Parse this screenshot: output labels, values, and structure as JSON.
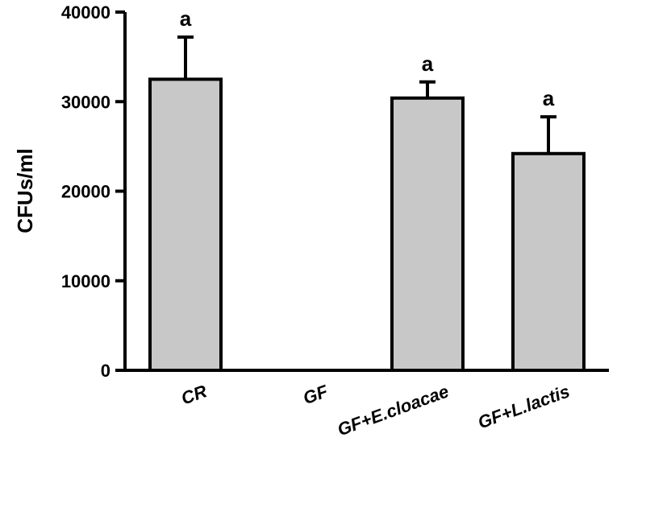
{
  "chart_data": {
    "type": "bar",
    "title": "",
    "xlabel": "",
    "ylabel": "CFUs/ml",
    "ylim": [
      0,
      40000
    ],
    "yticks": [
      0,
      10000,
      20000,
      30000,
      40000
    ],
    "ytick_labels": [
      "0",
      "10000",
      "20000",
      "30000",
      "40000"
    ],
    "grid": false,
    "categories": [
      "CR",
      "GF",
      "GF+E.cloacae",
      "GF+L.lactis"
    ],
    "values": [
      32500,
      0,
      30400,
      24200
    ],
    "error_upper": [
      4700,
      0,
      1800,
      4100
    ],
    "annotations": [
      "a",
      "",
      "a",
      "a"
    ],
    "bar_color": "#c8c8c8",
    "edge_color": "#000000"
  }
}
